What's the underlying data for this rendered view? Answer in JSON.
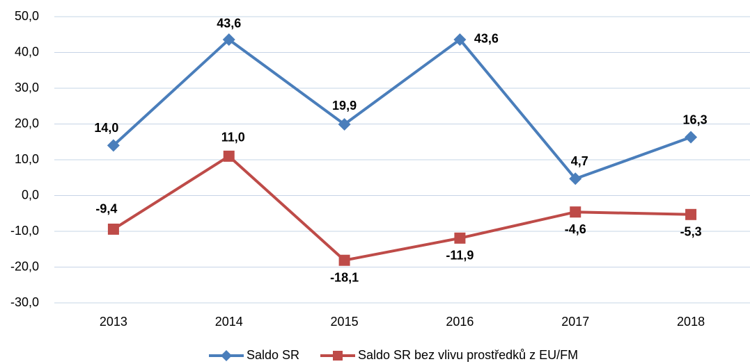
{
  "chart_data": {
    "type": "line",
    "categories": [
      "2013",
      "2014",
      "2015",
      "2016",
      "2017",
      "2018"
    ],
    "series": [
      {
        "name": "Saldo SR",
        "color": "#4a7ebb",
        "marker": "diamond",
        "values": [
          14.0,
          43.6,
          19.9,
          43.6,
          4.7,
          16.3
        ],
        "value_labels": [
          "14,0",
          "43,6",
          "19,9",
          "43,6",
          "4,7",
          "16,3"
        ]
      },
      {
        "name": "Saldo SR bez vlivu prostředků z EU/FM",
        "color": "#be4b48",
        "marker": "square",
        "values": [
          -9.4,
          11.0,
          -18.1,
          -11.9,
          -4.6,
          -5.3
        ],
        "value_labels": [
          "-9,4",
          "11,0",
          "-18,1",
          "-11,9",
          "-4,6",
          "-5,3"
        ]
      }
    ],
    "ylim": [
      -30,
      50
    ],
    "yticks": [
      {
        "value": -30,
        "label": "-30,0"
      },
      {
        "value": -20,
        "label": "-20,0"
      },
      {
        "value": -10,
        "label": "-10,0"
      },
      {
        "value": 0,
        "label": "0,0"
      },
      {
        "value": 10,
        "label": "10,0"
      },
      {
        "value": 20,
        "label": "20,0"
      },
      {
        "value": 30,
        "label": "30,0"
      },
      {
        "value": 40,
        "label": "40,0"
      },
      {
        "value": 50,
        "label": "50,0"
      }
    ],
    "grid": true,
    "legend": "bottom"
  }
}
